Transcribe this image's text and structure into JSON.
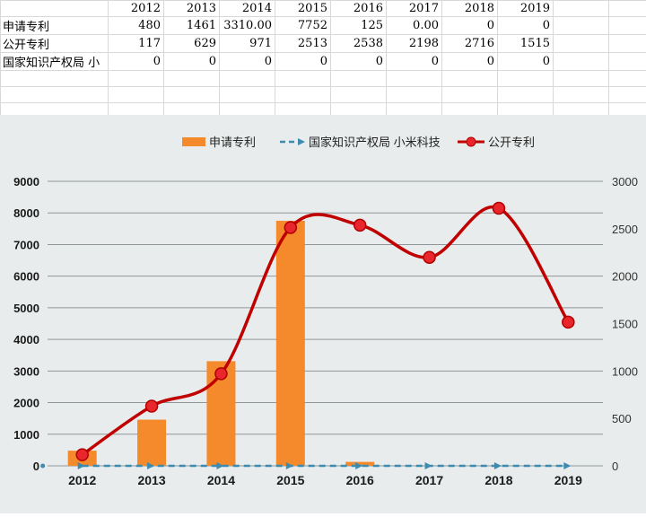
{
  "sheet": {
    "years": [
      "2012",
      "2013",
      "2014",
      "2015",
      "2016",
      "2017",
      "2018",
      "2019"
    ],
    "rows": [
      {
        "label": "申请专利",
        "values": [
          "480",
          "1461",
          "3310.00",
          "7752",
          "125",
          "0.00",
          "0",
          "0"
        ]
      },
      {
        "label": "公开专利",
        "values": [
          "117",
          "629",
          "971",
          "2513",
          "2538",
          "2198",
          "2716",
          "1515"
        ]
      },
      {
        "label": "国家知识产权局 小",
        "values": [
          "0",
          "0",
          "0",
          "0",
          "0",
          "0",
          "0",
          "0"
        ]
      }
    ]
  },
  "chart_data": {
    "type": "bar",
    "categories": [
      "2012",
      "2013",
      "2014",
      "2015",
      "2016",
      "2017",
      "2018",
      "2019"
    ],
    "series": [
      {
        "name": "申请专利",
        "type": "bar",
        "axis": "left",
        "color": "#f58a2c",
        "values": [
          480,
          1461,
          3310,
          7752,
          125,
          0,
          0,
          0
        ]
      },
      {
        "name": "国家知识产权局 小米科技",
        "type": "line",
        "style": "dashed-arrow",
        "axis": "left",
        "color": "#3e8bb0",
        "values": [
          0,
          0,
          0,
          0,
          0,
          0,
          0,
          0
        ]
      },
      {
        "name": "公开专利",
        "type": "line",
        "style": "smooth-markers",
        "axis": "right",
        "color": "#c00000",
        "values": [
          117,
          629,
          971,
          2513,
          2538,
          2198,
          2716,
          1515
        ]
      }
    ],
    "left_axis": {
      "min": 0,
      "max": 9000,
      "step": 1000,
      "ticks": [
        "0",
        "1000",
        "2000",
        "3000",
        "4000",
        "5000",
        "6000",
        "7000",
        "8000",
        "9000"
      ]
    },
    "right_axis": {
      "min": 0,
      "max": 3000,
      "step": 500,
      "ticks": [
        "0",
        "500",
        "1000",
        "1500",
        "2000",
        "2500",
        "3000"
      ]
    },
    "legend_position": "top",
    "grid": true,
    "title": "",
    "xlabel": "",
    "ylabel": ""
  }
}
